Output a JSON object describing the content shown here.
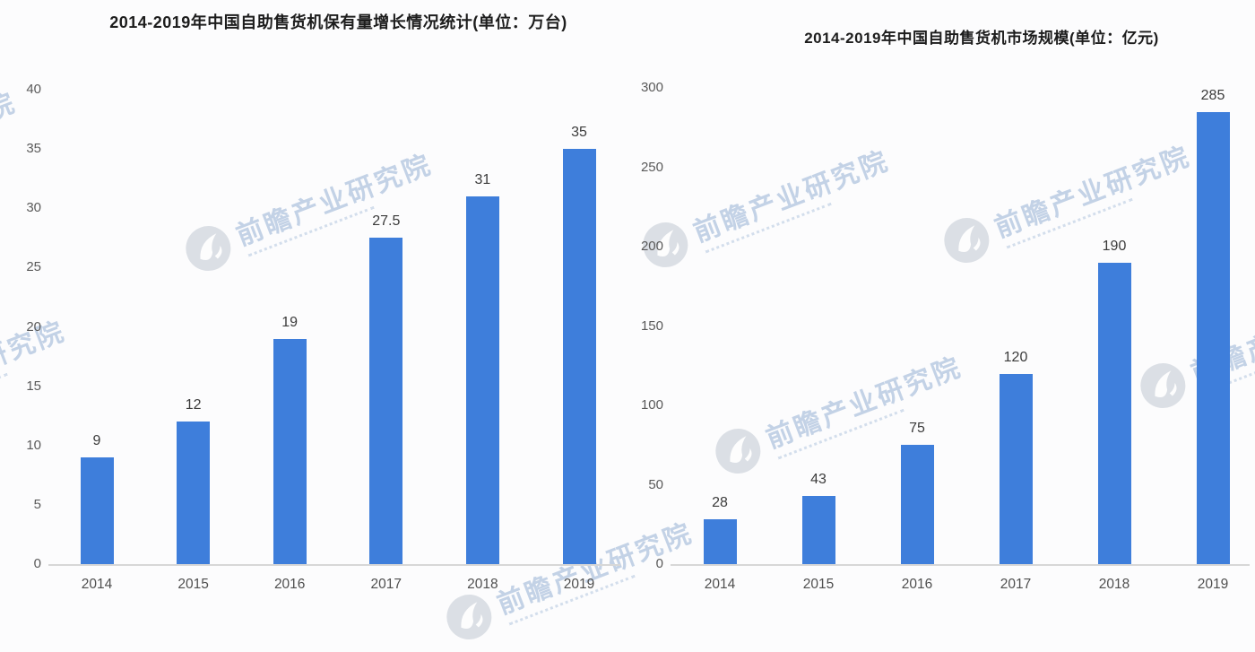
{
  "watermark": {
    "text": "前瞻产业研究院"
  },
  "chart_data": [
    {
      "type": "bar",
      "title": "2014-2019年中国自助售货机保有量增长情况统计(单位：万台)",
      "unit": "万台",
      "categories": [
        "2014",
        "2015",
        "2016",
        "2017",
        "2018",
        "2019"
      ],
      "values": [
        9,
        12,
        19,
        27.5,
        31,
        35
      ],
      "value_labels": [
        "9",
        "12",
        "19",
        "27.5",
        "31",
        "35"
      ],
      "xlabel": "",
      "ylabel": "",
      "ylim": [
        0,
        40
      ],
      "ytick_step": 5,
      "ytick_labels": [
        "0",
        "5",
        "10",
        "15",
        "20",
        "25",
        "30",
        "35",
        "40"
      ],
      "grid": false,
      "legend": "none",
      "bar_color": "#3e7edb"
    },
    {
      "type": "bar",
      "title": "2014-2019年中国自助售货机市场规模(单位：亿元)",
      "unit": "亿元",
      "categories": [
        "2014",
        "2015",
        "2016",
        "2017",
        "2018",
        "2019"
      ],
      "values": [
        28,
        43,
        75,
        120,
        190,
        285
      ],
      "value_labels": [
        "28",
        "43",
        "75",
        "120",
        "190",
        "285"
      ],
      "xlabel": "",
      "ylabel": "",
      "ylim": [
        0,
        300
      ],
      "ytick_step": 50,
      "ytick_labels": [
        "0",
        "50",
        "100",
        "150",
        "200",
        "250",
        "300"
      ],
      "grid": false,
      "legend": "none",
      "bar_color": "#3e7edb"
    }
  ],
  "colors": {
    "bar": "#3e7edb",
    "axis_line": "#d7d7d7",
    "tick_label": "#5a5a5a",
    "value_label": "#3b3b3b",
    "title": "#1d1d1d",
    "watermark_text": "#b6c8e1",
    "watermark_logo": "#b4bdc9"
  }
}
